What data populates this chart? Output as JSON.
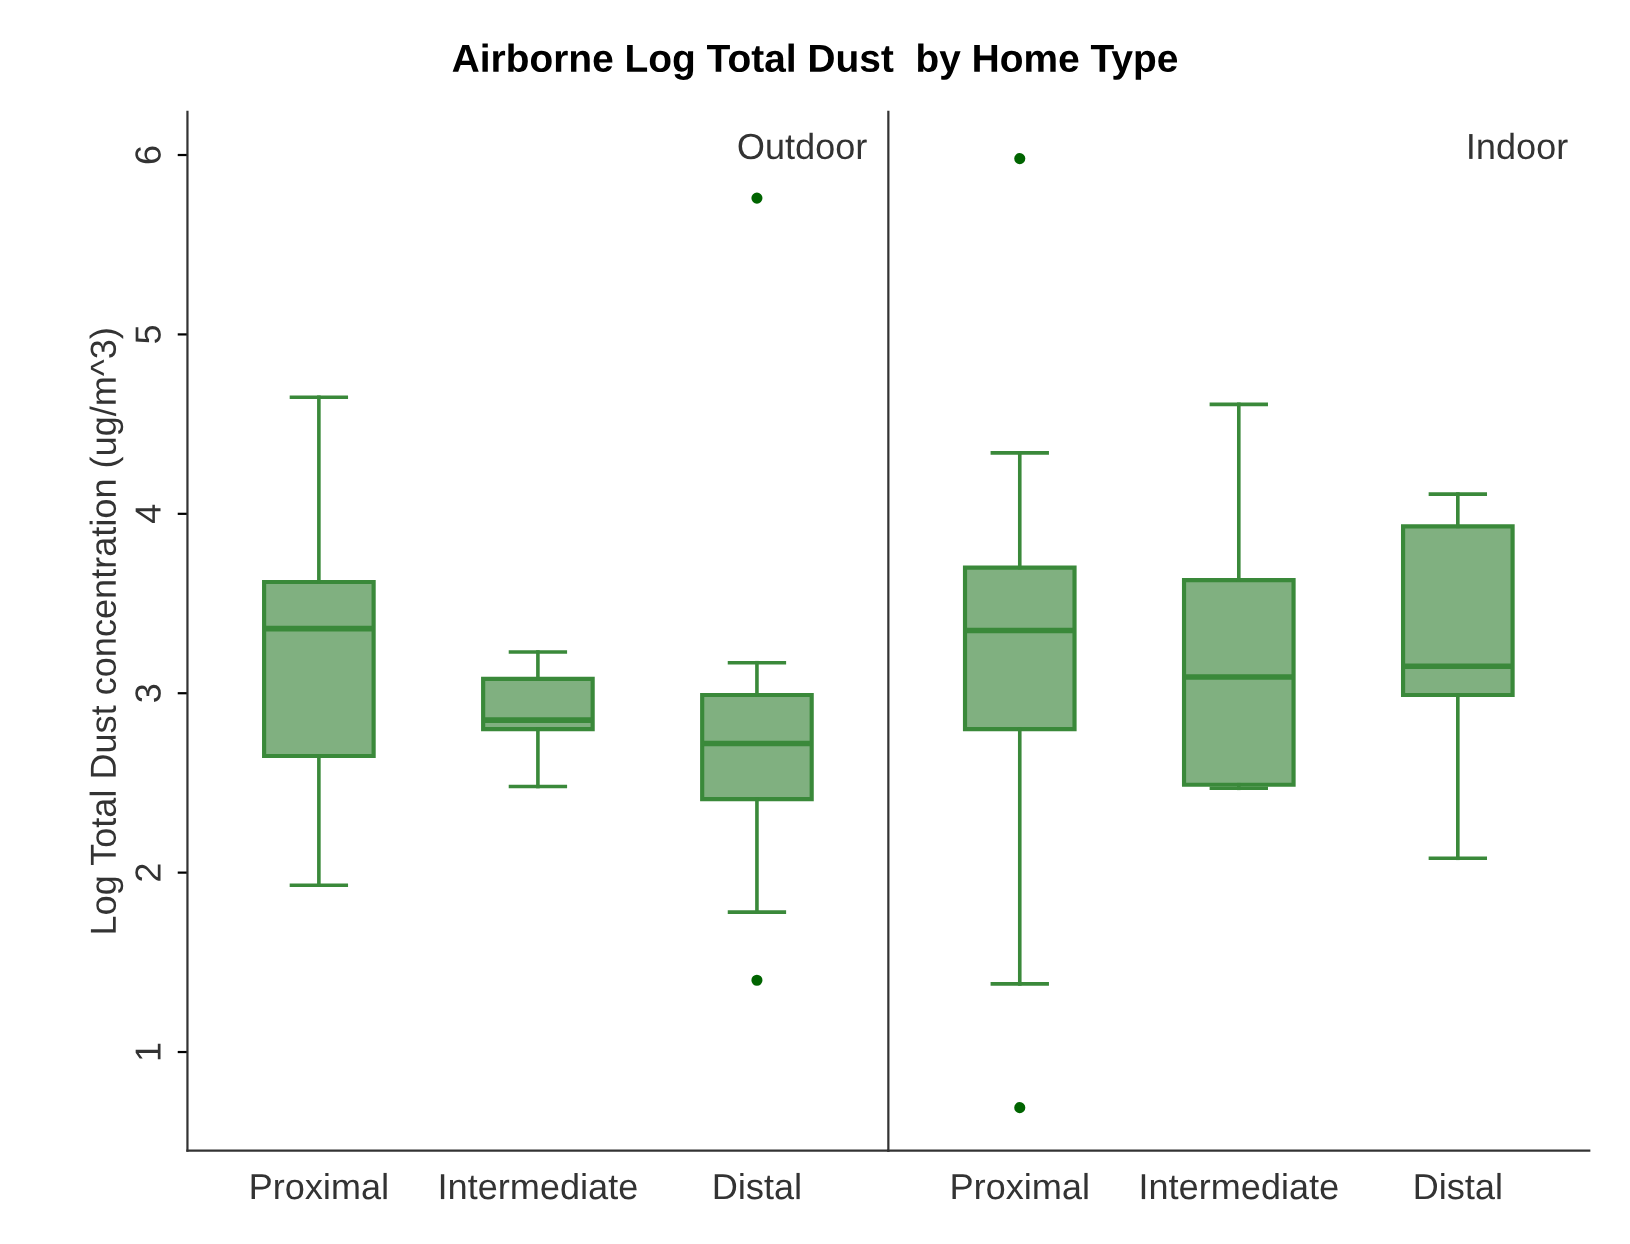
{
  "chart_data": [
    {
      "type": "box",
      "title": "Airborne Log Total Dust  by Home Type",
      "ylabel": "Log Total Dust concentration (ug/m^3)",
      "annotations": [
        "Outdoor"
      ],
      "categories": [
        "Proximal",
        "Intermediate",
        "Distal"
      ],
      "color": "#80b080",
      "ylim": [
        0.45,
        6.24
      ],
      "yticks": [
        1,
        2,
        3,
        4,
        5,
        6
      ],
      "grid": false,
      "boxes": [
        {
          "low": 1.93,
          "q1": 2.65,
          "median": 3.36,
          "q3": 3.62,
          "high": 4.65
        },
        {
          "low": 2.48,
          "q1": 2.8,
          "median": 2.85,
          "q3": 3.08,
          "high": 3.23
        },
        {
          "low": 1.78,
          "q1": 2.41,
          "median": 2.72,
          "q3": 2.99,
          "high": 3.17,
          "outliers": [
            1.4,
            5.76
          ]
        }
      ]
    },
    {
      "type": "box",
      "annotations": [
        "Indoor"
      ],
      "categories": [
        "Proximal",
        "Intermediate",
        "Distal"
      ],
      "color": "#80b080",
      "ylim": [
        0.45,
        6.24
      ],
      "tick_labels": "x",
      "grid": false,
      "boxes": [
        {
          "low": 1.38,
          "q1": 2.8,
          "median": 3.35,
          "q3": 3.7,
          "high": 4.34,
          "outliers": [
            0.69,
            5.98
          ]
        },
        {
          "low": 2.47,
          "q1": 2.49,
          "median": 3.09,
          "q3": 3.63,
          "high": 4.61
        },
        {
          "low": 2.08,
          "q1": 2.99,
          "median": 3.15,
          "q3": 3.93,
          "high": 4.11
        }
      ]
    }
  ]
}
